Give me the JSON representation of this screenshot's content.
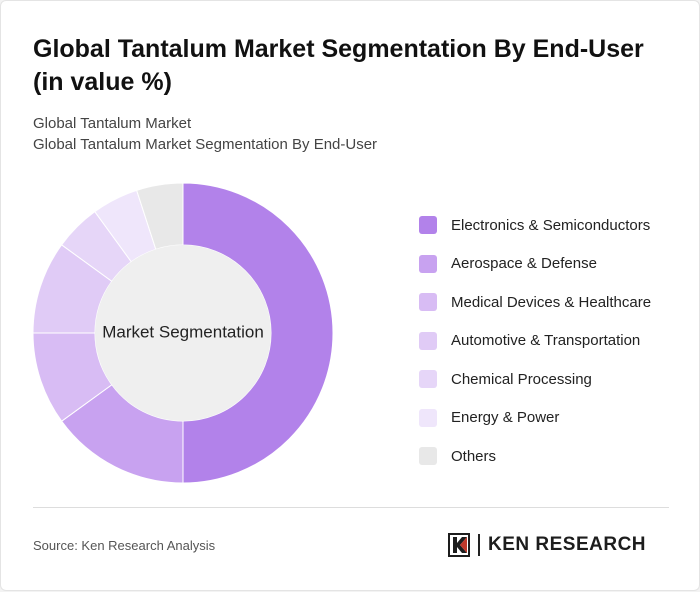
{
  "header": {
    "title": "Global Tantalum Market Segmentation By End-User (in value %)",
    "subtitle_1": "Global Tantalum Market",
    "subtitle_2": "Global Tantalum Market Segmentation By End-User"
  },
  "chart_data": {
    "type": "pie",
    "center_label": "Market Segmentation",
    "categories": [
      "Electronics & Semiconductors",
      "Aerospace & Defense",
      "Medical Devices & Healthcare",
      "Automotive & Transportation",
      "Chemical Processing",
      "Energy & Power",
      "Others"
    ],
    "values": [
      50,
      15,
      10,
      10,
      5,
      5,
      5
    ],
    "colors": [
      "#b282ea",
      "#c8a2f0",
      "#d8bcf4",
      "#e0cbf6",
      "#e6d6f8",
      "#efe6fb",
      "#e8e8e8"
    ],
    "legend_placement": "right"
  },
  "footer": {
    "source": "Source: Ken Research Analysis",
    "brand": "KEN RESEARCH",
    "brand_icon": "ken-research-logo-icon"
  }
}
